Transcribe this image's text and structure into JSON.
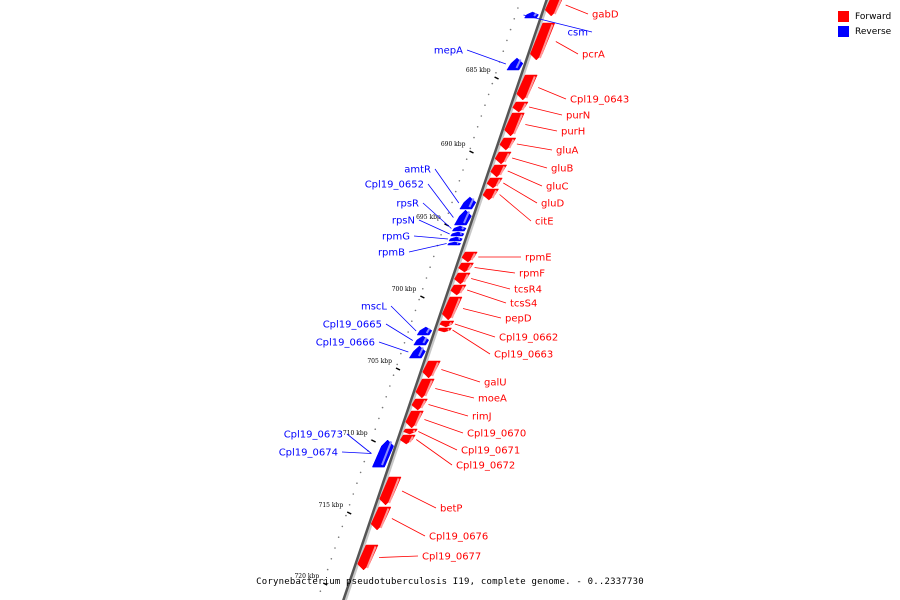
{
  "legend": {
    "forward_label": "Forward",
    "reverse_label": "Reverse",
    "forward_color": "#ff0000",
    "reverse_color": "#0000ff"
  },
  "caption": "Corynebacterium pseudotuberculosis I19, complete genome. - 0..2337730",
  "scale": {
    "tick_labels": [
      "685 kbp",
      "690 kbp",
      "695 kbp",
      "700 kbp",
      "705 kbp",
      "710 kbp",
      "715 kbp",
      "720 kbp"
    ]
  },
  "genes": {
    "forward": [
      "gabD",
      "pcrA",
      "Cpl19_0643",
      "purN",
      "purH",
      "gluA",
      "gluB",
      "gluC",
      "gluD",
      "citE",
      "rpmE",
      "rpmF",
      "tcsR4",
      "tcsS4",
      "pepD",
      "Cpl19_0662",
      "Cpl19_0663",
      "galU",
      "moeA",
      "rimJ",
      "Cpl19_0670",
      "Cpl19_0671",
      "Cpl19_0672",
      "betP",
      "Cpl19_0676",
      "Cpl19_0677"
    ],
    "reverse": [
      "csm",
      "mepA",
      "amtR",
      "Cpl19_0652",
      "rpsR",
      "rpsN",
      "rpmG",
      "rpmB",
      "mscL",
      "Cpl19_0665",
      "Cpl19_0666",
      "Cpl19_0673",
      "Cpl19_0674"
    ]
  }
}
